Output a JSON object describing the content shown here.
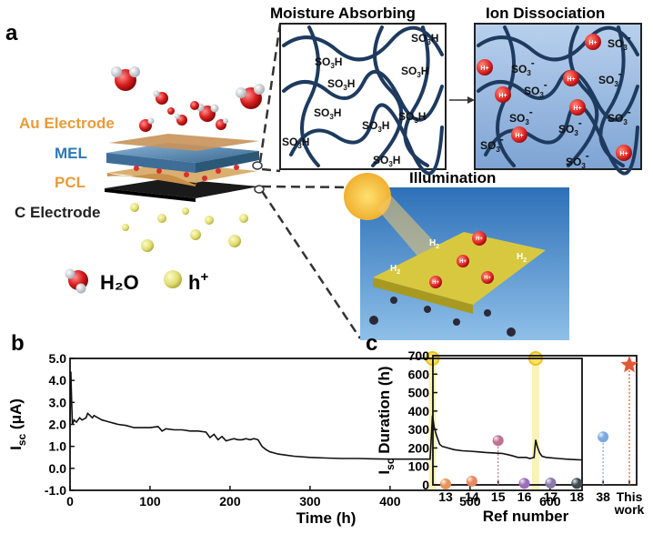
{
  "panels": {
    "a": {
      "label": "a",
      "layers": [
        "Au Electrode",
        "MEL",
        "PCL",
        "C Electrode"
      ],
      "layer_colors": [
        "#e89b3a",
        "#2e78b8",
        "#e89b3a",
        "#222222"
      ],
      "legend": {
        "water": "H₂O",
        "hole": "h",
        "hole_sup": "+"
      },
      "moisture_title": "Moisture Absorbing",
      "ion_title": "Ion Dissociation",
      "illum_title": "Illumination",
      "so3h": "SO3H",
      "so3": "SO3",
      "so3_charge": "-",
      "proton": "H+",
      "h2": "H2"
    },
    "b": {
      "label": "b"
    },
    "c": {
      "label": "c"
    }
  },
  "chart_data": [
    {
      "id": "b",
      "type": "line",
      "xlabel": "Time (h)",
      "ylabel": "Isc (μA)",
      "ylabel_main": "I",
      "ylabel_sub": "sc",
      "ylabel_unit": " (μA)",
      "xlim": [
        0,
        640
      ],
      "ylim": [
        -1.0,
        5.0
      ],
      "xticks": [
        0,
        100,
        200,
        300,
        400,
        500,
        600
      ],
      "yticks": [
        -1.0,
        0.0,
        1.0,
        2.0,
        3.0,
        4.0,
        5.0
      ],
      "illumination_markers_h": [
        453,
        582
      ],
      "color": "#111111",
      "series": [
        {
          "x": [
            0,
            1,
            2,
            3,
            5,
            8,
            10,
            12,
            15,
            20,
            22,
            25,
            28,
            30,
            35,
            40,
            45,
            50,
            55,
            60,
            70,
            80,
            90,
            100,
            110,
            115,
            120,
            130,
            140,
            150,
            160,
            170,
            175,
            180,
            185,
            190,
            195,
            200,
            205,
            210,
            215,
            220,
            225,
            230,
            235,
            240,
            245,
            250,
            255,
            260,
            270,
            280,
            300,
            320,
            340,
            360,
            380,
            400,
            420,
            440,
            450,
            452,
            453,
            455,
            458,
            462,
            465,
            470,
            480,
            490,
            500,
            510,
            520,
            530,
            540,
            550,
            560,
            570,
            575,
            580,
            582,
            584,
            587,
            590,
            595,
            600,
            610,
            620,
            630,
            640
          ],
          "y": [
            2.1,
            4.4,
            3.0,
            2.0,
            2.2,
            2.1,
            2.2,
            2.3,
            2.2,
            2.3,
            2.5,
            2.4,
            2.3,
            2.4,
            2.3,
            2.2,
            2.15,
            2.1,
            2.05,
            2.0,
            1.95,
            1.85,
            1.85,
            1.85,
            1.9,
            1.7,
            1.8,
            1.75,
            1.75,
            1.7,
            1.7,
            1.65,
            1.4,
            1.55,
            1.3,
            1.45,
            1.25,
            1.3,
            1.35,
            1.3,
            1.3,
            1.35,
            1.3,
            1.35,
            1.3,
            1.0,
            0.85,
            0.75,
            0.7,
            0.65,
            0.6,
            0.55,
            0.5,
            0.47,
            0.45,
            0.45,
            0.43,
            0.42,
            0.42,
            0.42,
            0.42,
            1.7,
            2.4,
            1.9,
            1.5,
            1.1,
            1.0,
            0.95,
            0.85,
            0.8,
            0.78,
            0.75,
            0.72,
            0.7,
            0.68,
            0.6,
            0.5,
            0.5,
            0.45,
            0.5,
            1.3,
            1.0,
            0.7,
            0.55,
            0.5,
            0.48,
            0.45,
            0.42,
            0.4,
            0.38
          ]
        }
      ]
    },
    {
      "id": "c",
      "type": "scatter",
      "xlabel": "Ref number",
      "ylabel": "Isc Duration (h)",
      "ylabel_main": "I",
      "ylabel_sub": "sc",
      "ylabel_unit": " Duration (h)",
      "categories": [
        "13",
        "14",
        "15",
        "16",
        "17",
        "18",
        "38",
        "This"
      ],
      "category_second_line": [
        "",
        "",
        "",
        "",
        "",
        "",
        "",
        "work"
      ],
      "values": [
        5,
        20,
        240,
        8,
        10,
        8,
        260,
        650
      ],
      "marker": [
        "sphere",
        "sphere",
        "sphere",
        "sphere",
        "sphere",
        "sphere",
        "sphere",
        "star"
      ],
      "colors": [
        "#e8935a",
        "#e88860",
        "#c07090",
        "#9d6db8",
        "#8a78a8",
        "#3d4a50",
        "#7ba8e0",
        "#e05838"
      ],
      "ylim": [
        0,
        700
      ],
      "yticks": [
        0,
        100,
        200,
        300,
        400,
        500,
        600,
        700
      ]
    }
  ]
}
